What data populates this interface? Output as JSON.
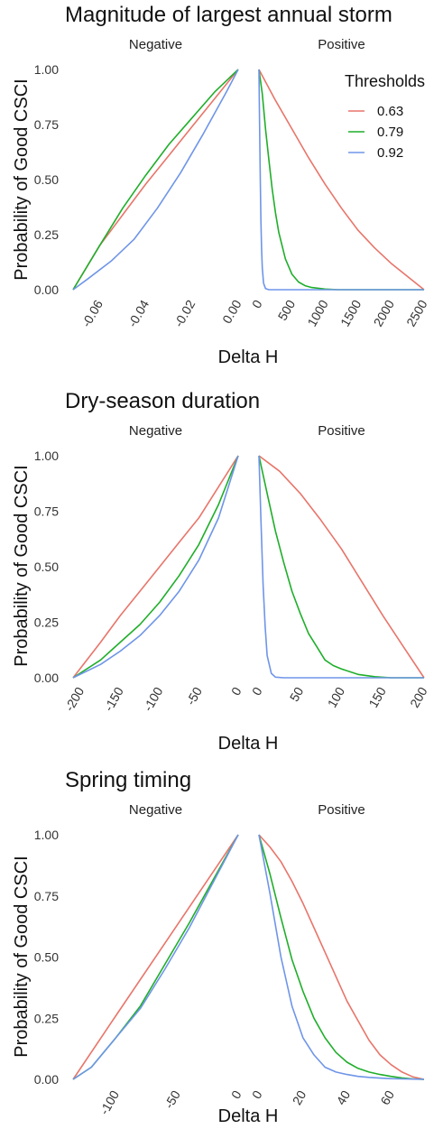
{
  "legend": {
    "title": "Thresholds",
    "items": [
      {
        "label": "0.63",
        "color": "#E8756A"
      },
      {
        "label": "0.79",
        "color": "#1FAE2A"
      },
      {
        "label": "0.92",
        "color": "#6F95E8"
      }
    ]
  },
  "chart_data": [
    {
      "type": "line",
      "title": "Magnitude of largest annual storm",
      "ylabel": "Probability of Good CSCI",
      "xlabel": "Delta H",
      "ylim": [
        0,
        1
      ],
      "yticks": [
        0,
        0.25,
        0.5,
        0.75,
        1.0
      ],
      "ytick_labels": [
        "0.00",
        "0.25",
        "0.50",
        "0.75",
        "1.00"
      ],
      "legend_position": "top-right",
      "grid": true,
      "panels": [
        {
          "label": "Negative",
          "xlim": [
            -0.0715,
            0.0
          ],
          "xticks": [
            -0.06,
            -0.04,
            -0.02,
            0.0
          ],
          "xtick_labels": [
            "-0.06",
            "-0.04",
            "-0.02",
            "0.00"
          ],
          "series": [
            {
              "name": "0.63",
              "x": [
                -0.0715,
                -0.06,
                -0.05,
                -0.04,
                -0.03,
                -0.02,
                -0.01,
                0.0
              ],
              "y": [
                0.0,
                0.2,
                0.34,
                0.48,
                0.61,
                0.74,
                0.87,
                1.0
              ]
            },
            {
              "name": "0.79",
              "x": [
                -0.0715,
                -0.06,
                -0.05,
                -0.04,
                -0.03,
                -0.02,
                -0.01,
                0.0
              ],
              "y": [
                0.0,
                0.2,
                0.37,
                0.52,
                0.66,
                0.78,
                0.9,
                1.0
              ]
            },
            {
              "name": "0.92",
              "x": [
                -0.0715,
                -0.065,
                -0.055,
                -0.045,
                -0.035,
                -0.025,
                -0.015,
                -0.005,
                0.0
              ],
              "y": [
                0.0,
                0.05,
                0.13,
                0.23,
                0.37,
                0.53,
                0.71,
                0.9,
                1.0
              ]
            }
          ]
        },
        {
          "label": "Positive",
          "xlim": [
            0,
            2500
          ],
          "xticks": [
            0,
            500,
            1000,
            1500,
            2000,
            2500
          ],
          "xtick_labels": [
            "0",
            "500",
            "1000",
            "1500",
            "2000",
            "2500"
          ],
          "series": [
            {
              "name": "0.63",
              "x": [
                0,
                250,
                500,
                750,
                1000,
                1250,
                1500,
                1750,
                2000,
                2250,
                2500
              ],
              "y": [
                1.0,
                0.86,
                0.73,
                0.6,
                0.48,
                0.37,
                0.27,
                0.19,
                0.12,
                0.06,
                0.0
              ]
            },
            {
              "name": "0.79",
              "x": [
                0,
                50,
                100,
                150,
                200,
                250,
                300,
                400,
                500,
                600,
                700,
                800,
                1000,
                1200,
                2500
              ],
              "y": [
                1.0,
                0.89,
                0.73,
                0.59,
                0.46,
                0.35,
                0.26,
                0.14,
                0.07,
                0.035,
                0.018,
                0.01,
                0.003,
                0.0,
                0.0
              ]
            },
            {
              "name": "0.92",
              "x": [
                0,
                10,
                20,
                30,
                40,
                50,
                70,
                100,
                150,
                2500
              ],
              "y": [
                1.0,
                0.75,
                0.5,
                0.31,
                0.19,
                0.1,
                0.03,
                0.005,
                0.0,
                0.0
              ]
            }
          ]
        }
      ]
    },
    {
      "type": "line",
      "title": "Dry-season duration",
      "ylabel": "Probability of Good CSCI",
      "xlabel": "Delta H",
      "ylim": [
        0,
        1
      ],
      "yticks": [
        0,
        0.25,
        0.5,
        0.75,
        1.0
      ],
      "ytick_labels": [
        "0.00",
        "0.25",
        "0.50",
        "0.75",
        "1.00"
      ],
      "grid": true,
      "panels": [
        {
          "label": "Negative",
          "xlim": [
            -210,
            0
          ],
          "xticks": [
            -200,
            -150,
            -100,
            -50,
            0
          ],
          "xtick_labels": [
            "-200",
            "-150",
            "-100",
            "-50",
            "0"
          ],
          "series": [
            {
              "name": "0.63",
              "x": [
                -210,
                -175,
                -150,
                -125,
                -100,
                -75,
                -50,
                -25,
                0
              ],
              "y": [
                0.0,
                0.16,
                0.28,
                0.39,
                0.5,
                0.61,
                0.72,
                0.86,
                1.0
              ]
            },
            {
              "name": "0.79",
              "x": [
                -210,
                -175,
                -150,
                -125,
                -100,
                -75,
                -50,
                -25,
                0
              ],
              "y": [
                0.0,
                0.08,
                0.16,
                0.24,
                0.34,
                0.46,
                0.6,
                0.78,
                1.0
              ]
            },
            {
              "name": "0.92",
              "x": [
                -210,
                -175,
                -150,
                -125,
                -100,
                -75,
                -50,
                -25,
                0
              ],
              "y": [
                0.0,
                0.06,
                0.12,
                0.19,
                0.28,
                0.39,
                0.53,
                0.72,
                1.0
              ]
            }
          ]
        },
        {
          "label": "Positive",
          "xlim": [
            0,
            200
          ],
          "xticks": [
            0,
            50,
            100,
            150,
            200
          ],
          "xtick_labels": [
            "0",
            "50",
            "100",
            "150",
            "200"
          ],
          "series": [
            {
              "name": "0.63",
              "x": [
                0,
                25,
                50,
                75,
                100,
                125,
                150,
                175,
                200
              ],
              "y": [
                1.0,
                0.93,
                0.83,
                0.71,
                0.58,
                0.43,
                0.28,
                0.14,
                0.0
              ]
            },
            {
              "name": "0.79",
              "x": [
                0,
                10,
                20,
                30,
                40,
                50,
                60,
                70,
                80,
                90,
                100,
                120,
                140,
                160,
                200
              ],
              "y": [
                1.0,
                0.83,
                0.66,
                0.52,
                0.39,
                0.29,
                0.2,
                0.14,
                0.08,
                0.055,
                0.04,
                0.015,
                0.005,
                0.0,
                0.0
              ]
            },
            {
              "name": "0.92",
              "x": [
                0,
                2.5,
                5,
                7.5,
                10,
                15,
                20,
                30,
                200
              ],
              "y": [
                1.0,
                0.7,
                0.42,
                0.23,
                0.1,
                0.02,
                0.003,
                0.0,
                0.0
              ]
            }
          ]
        }
      ]
    },
    {
      "type": "line",
      "title": "Spring timing",
      "ylabel": "Probability of Good CSCI",
      "xlabel": "Delta H",
      "ylim": [
        0,
        1
      ],
      "yticks": [
        0,
        0.25,
        0.5,
        0.75,
        1.0
      ],
      "ytick_labels": [
        "0.00",
        "0.25",
        "0.50",
        "0.75",
        "1.00"
      ],
      "grid": true,
      "panels": [
        {
          "label": "Negative",
          "xlim": [
            -135,
            0
          ],
          "xticks": [
            -100,
            -50,
            0
          ],
          "xtick_labels": [
            "-100",
            "-50",
            "0"
          ],
          "series": [
            {
              "name": "0.63",
              "x": [
                -135,
                -100,
                -50,
                0
              ],
              "y": [
                0.0,
                0.26,
                0.63,
                1.0
              ]
            },
            {
              "name": "0.79",
              "x": [
                -135,
                -120,
                -100,
                -80,
                -60,
                -40,
                -20,
                0
              ],
              "y": [
                0.0,
                0.05,
                0.17,
                0.3,
                0.47,
                0.64,
                0.82,
                1.0
              ]
            },
            {
              "name": "0.92",
              "x": [
                -135,
                -120,
                -100,
                -80,
                -60,
                -40,
                -20,
                0
              ],
              "y": [
                0.0,
                0.05,
                0.17,
                0.29,
                0.45,
                0.62,
                0.81,
                1.0
              ]
            }
          ]
        },
        {
          "label": "Positive",
          "xlim": [
            0,
            75
          ],
          "xticks": [
            0,
            20,
            40,
            60
          ],
          "xtick_labels": [
            "0",
            "20",
            "40",
            "60"
          ],
          "series": [
            {
              "name": "0.63",
              "x": [
                0,
                5,
                10,
                15,
                20,
                25,
                30,
                35,
                40,
                45,
                50,
                55,
                60,
                65,
                70,
                75
              ],
              "y": [
                1.0,
                0.95,
                0.89,
                0.81,
                0.72,
                0.62,
                0.52,
                0.42,
                0.32,
                0.24,
                0.16,
                0.1,
                0.06,
                0.03,
                0.01,
                0.0
              ]
            },
            {
              "name": "0.79",
              "x": [
                0,
                5,
                10,
                15,
                20,
                25,
                30,
                35,
                40,
                45,
                50,
                55,
                60,
                65,
                70,
                75
              ],
              "y": [
                1.0,
                0.84,
                0.66,
                0.49,
                0.36,
                0.25,
                0.17,
                0.11,
                0.07,
                0.045,
                0.03,
                0.02,
                0.012,
                0.006,
                0.002,
                0.0
              ]
            },
            {
              "name": "0.92",
              "x": [
                0,
                5,
                10,
                15,
                20,
                25,
                30,
                35,
                40,
                45,
                50,
                55,
                60,
                65,
                70,
                75
              ],
              "y": [
                1.0,
                0.76,
                0.5,
                0.3,
                0.17,
                0.1,
                0.05,
                0.03,
                0.02,
                0.012,
                0.008,
                0.005,
                0.003,
                0.002,
                0.001,
                0.0
              ]
            }
          ]
        }
      ]
    }
  ]
}
